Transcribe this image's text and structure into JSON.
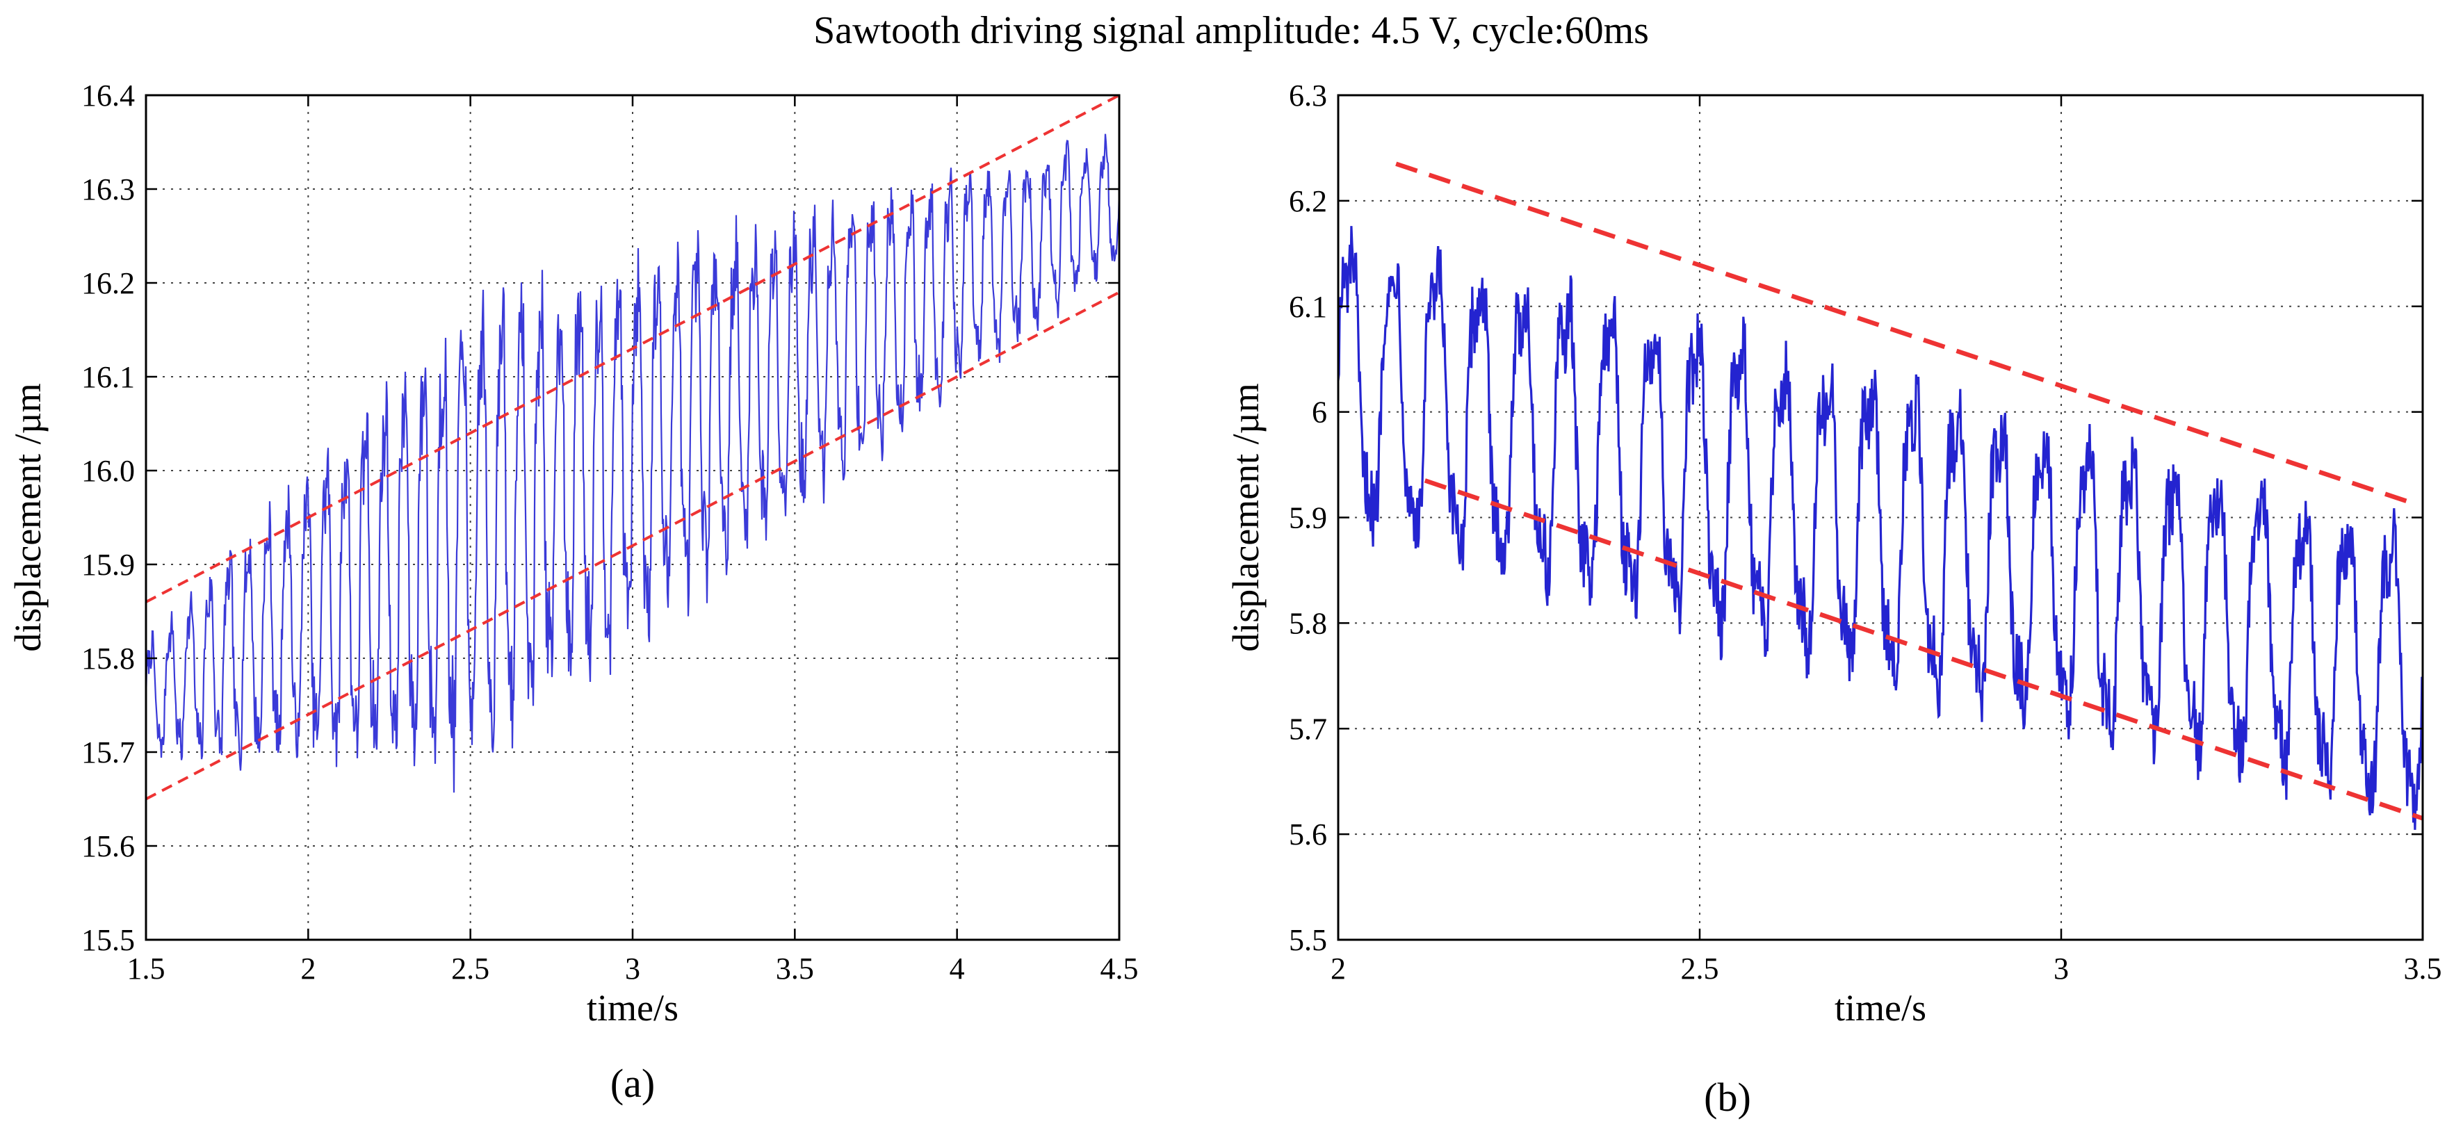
{
  "figure_title": "Sawtooth driving signal amplitude: 4.5 V, cycle:60ms",
  "chart_data": [
    {
      "type": "line",
      "panel_label": "(a)",
      "title": "",
      "xlabel": "time/s",
      "ylabel": "displacement /µm",
      "xlim": [
        1.5,
        4.5
      ],
      "ylim": [
        15.5,
        16.4
      ],
      "xticks": [
        "1.5",
        "2",
        "2.5",
        "3",
        "3.5",
        "4",
        "4.5"
      ],
      "yticks": [
        "15.5",
        "15.6",
        "15.7",
        "15.8",
        "15.9",
        "16.0",
        "16.1",
        "16.2",
        "16.3",
        "16.4"
      ],
      "grid": true,
      "series": [
        {
          "name": "measured displacement",
          "color": "#3a3ad8",
          "signal": {
            "t_start": 1.5,
            "t_end": 4.5,
            "period": 0.06,
            "center_start": 15.755,
            "center_end": 16.29,
            "half_amplitude_start": 0.06,
            "half_amplitude_peak": 0.25,
            "half_amplitude_end": 0.07
          }
        },
        {
          "name": "upper envelope",
          "color": "#ee3333",
          "dashed": true,
          "x": [
            1.5,
            4.5
          ],
          "y": [
            15.86,
            16.4
          ]
        },
        {
          "name": "lower envelope",
          "color": "#ee3333",
          "dashed": true,
          "x": [
            1.5,
            4.5
          ],
          "y": [
            15.65,
            16.19
          ]
        }
      ]
    },
    {
      "type": "line",
      "panel_label": "(b)",
      "title": "",
      "xlabel": "time/s",
      "ylabel": "displacement /µm",
      "xlim": [
        2,
        3.5
      ],
      "ylim": [
        5.5,
        6.3
      ],
      "xticks": [
        "2",
        "2.5",
        "3",
        "3.5"
      ],
      "yticks": [
        "5.5",
        "5.6",
        "5.7",
        "5.8",
        "5.9",
        "6",
        "6.1",
        "6.2",
        "6.3"
      ],
      "grid": true,
      "series": [
        {
          "name": "measured displacement",
          "color": "#2424d0",
          "signal": {
            "t_start": 2.0,
            "t_end": 3.5,
            "period": 0.06,
            "center_start": 6.03,
            "center_end": 5.75,
            "half_amplitude_start": 0.14,
            "half_amplitude_peak": 0.15,
            "half_amplitude_end": 0.14
          }
        },
        {
          "name": "upper envelope",
          "color": "#ee3333",
          "dashed": true,
          "x": [
            2.08,
            3.48
          ],
          "y": [
            6.235,
            5.915
          ]
        },
        {
          "name": "lower envelope",
          "color": "#ee3333",
          "dashed": true,
          "x": [
            2.12,
            3.5
          ],
          "y": [
            5.935,
            5.615
          ]
        }
      ]
    }
  ]
}
